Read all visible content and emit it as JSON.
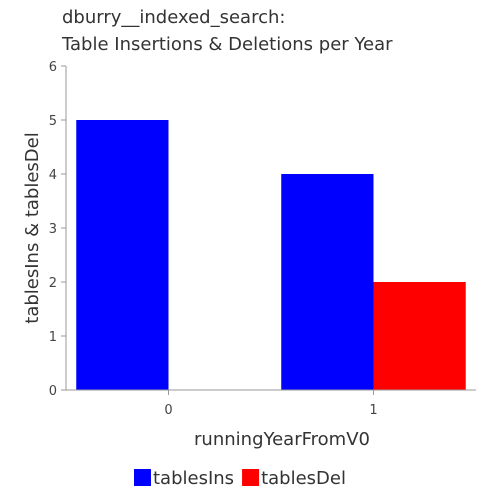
{
  "chart_data": {
    "type": "bar",
    "title_lines": [
      "dburry__indexed_search:",
      "Table Insertions & Deletions per Year"
    ],
    "xlabel": "runningYearFromV0",
    "ylabel": "tablesIns & tablesDel",
    "categories": [
      "0",
      "1"
    ],
    "ylim": [
      0,
      6
    ],
    "yticks": [
      0,
      1,
      2,
      3,
      4,
      5,
      6
    ],
    "legend_position": "bottom",
    "series": [
      {
        "name": "tablesIns",
        "color": "#0000ff",
        "values": [
          5,
          4
        ]
      },
      {
        "name": "tablesDel",
        "color": "#ff0000",
        "values": [
          0,
          2
        ]
      }
    ]
  }
}
